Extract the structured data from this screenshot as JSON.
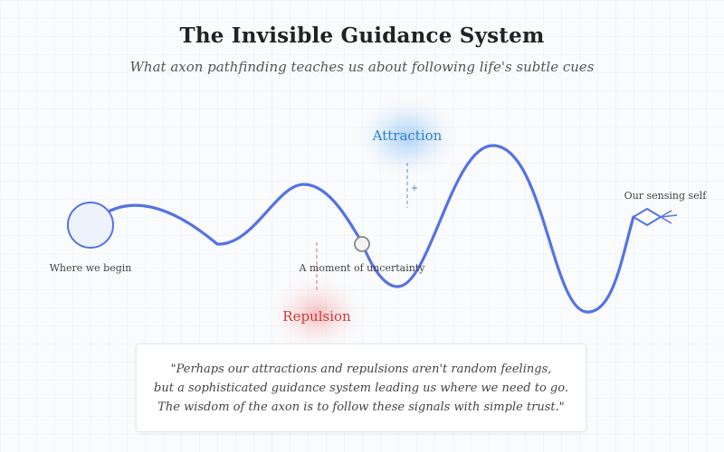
{
  "header": {
    "title": "The Invisible Guidance System",
    "subtitle": "What axon pathfinding teaches us about following life's subtle cues"
  },
  "diagram": {
    "attraction_label": "Attraction",
    "repulsion_label": "Repulsion",
    "start_label": "Where we begin",
    "uncertainty_label": "A moment of uncertainty",
    "end_label": "Our sensing self",
    "plus_sign": "+"
  },
  "quote": {
    "lines": [
      "\"Perhaps our attractions and repulsions aren't random feelings,",
      "but a sophisticated guidance system leading us where we need to go.",
      "The wisdom of the axon is to follow these signals with simple trust.\""
    ]
  },
  "colors": {
    "path": "#5572e6",
    "attraction": "#2f7fc8",
    "repulsion": "#cc3b3b",
    "start_fill": "#eef2fc",
    "node_stroke": "#888888"
  }
}
